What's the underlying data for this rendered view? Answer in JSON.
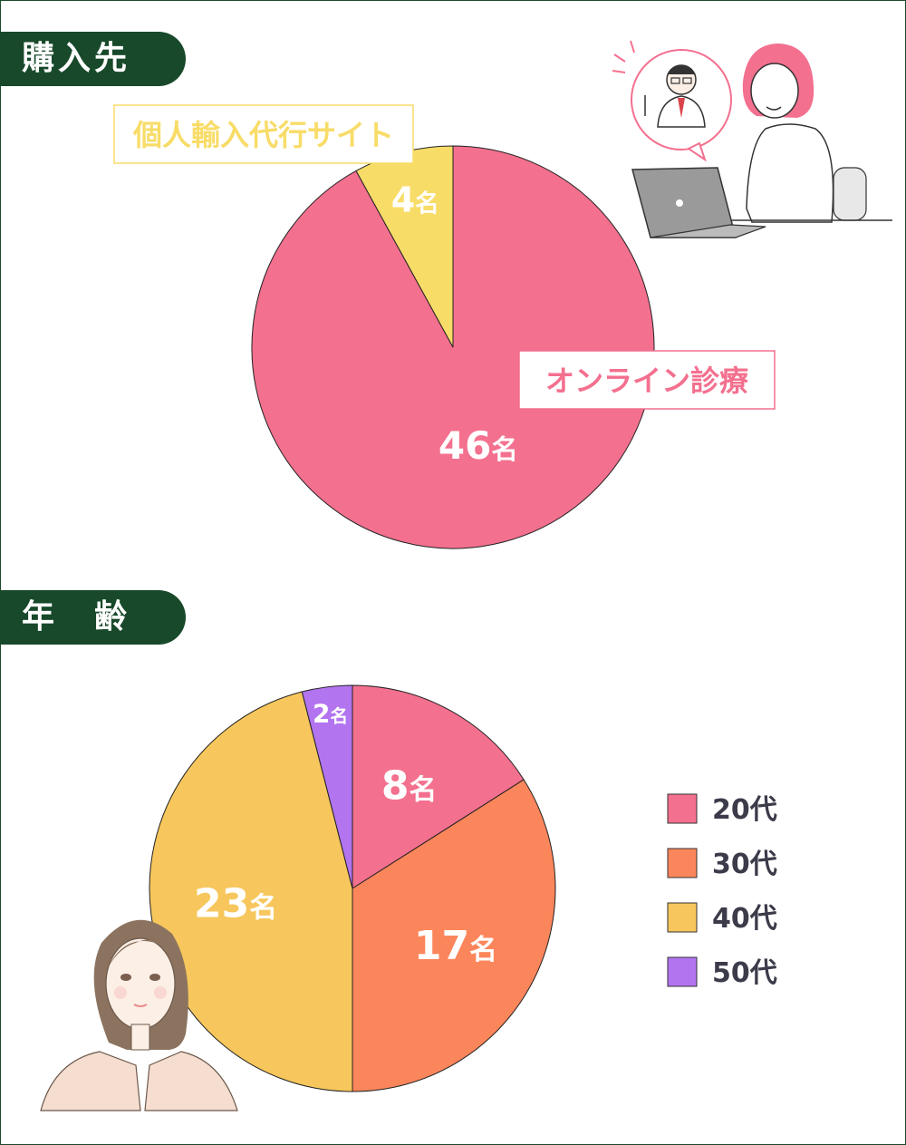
{
  "sections": {
    "purchase": {
      "title": "購入先"
    },
    "age": {
      "title": "年　齢"
    }
  },
  "chart_data": [
    {
      "type": "pie",
      "title": "購入先",
      "unit": "名",
      "slices": [
        {
          "label": "オンライン診療",
          "value": 46,
          "color": "#f3708f"
        },
        {
          "label": "個人輸入代行サイト",
          "value": 4,
          "color": "#f8dc68"
        }
      ]
    },
    {
      "type": "pie",
      "title": "年　齢",
      "unit": "名",
      "legend_position": "right",
      "slices": [
        {
          "label": "20代",
          "value": 8,
          "color": "#f3708f"
        },
        {
          "label": "30代",
          "value": 17,
          "color": "#fc865b"
        },
        {
          "label": "40代",
          "value": 23,
          "color": "#f7c75d"
        },
        {
          "label": "50代",
          "value": 2,
          "color": "#b374f0"
        }
      ]
    }
  ],
  "colors": {
    "tab_bg": "#17492a",
    "callout_online_text": "#f3708f",
    "callout_import_text": "#f8dc68",
    "legend_text": "#3b3b4a"
  },
  "icons": [
    "woman-at-laptop-illustration",
    "doctor-speech-bubble-illustration",
    "woman-portrait-illustration"
  ]
}
